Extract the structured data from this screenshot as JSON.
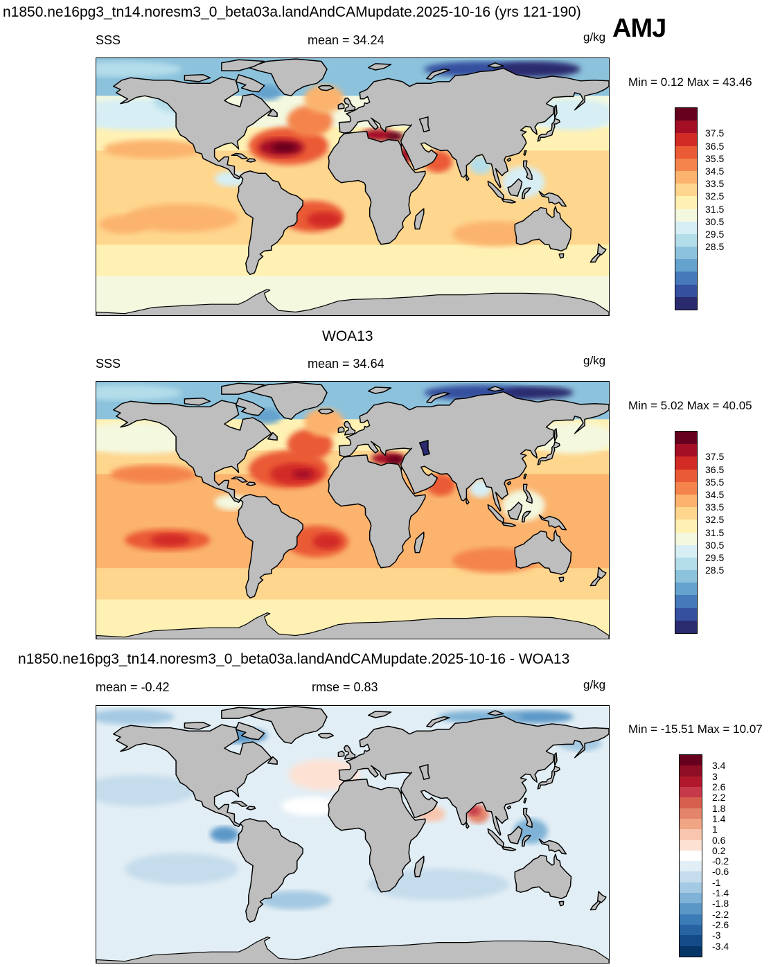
{
  "header": {
    "title": "n1850.ne16pg3_tn14.noresm3_0_beta03a.landAndCAMupdate.2025-10-16 (yrs 121-190)",
    "season": "AMJ"
  },
  "panels": [
    {
      "left_label": "SSS",
      "center_label": "mean =  34.24",
      "units": "g/kg",
      "minmax": "Min =   0.12 Max =  43.46"
    },
    {
      "title": "WOA13",
      "left_label": "SSS",
      "center_label": "mean =  34.64",
      "units": "g/kg",
      "minmax": "Min =   5.02 Max =  40.05"
    },
    {
      "title": "n1850.ne16pg3_tn14.noresm3_0_beta03a.landAndCAMupdate.2025-10-16 - WOA13",
      "left_label": "mean =  -0.42",
      "center_label": "rmse =   0.83",
      "units": "g/kg",
      "minmax": "Min = -15.51 Max =  10.07"
    }
  ],
  "colorbar_abs": {
    "labels": [
      "37.5",
      "36.5",
      "35.5",
      "34.5",
      "33.5",
      "32.5",
      "31.5",
      "30.5",
      "29.5",
      "28.5"
    ],
    "colors": [
      "#67001f",
      "#a50f26",
      "#d22b26",
      "#ea5a35",
      "#f4844c",
      "#fbb36d",
      "#fed68e",
      "#fff1b3",
      "#f3f8df",
      "#d6eef4",
      "#b4ddea",
      "#8cc2dc",
      "#65a2cd",
      "#4679b9",
      "#34509f",
      "#2a2b6e"
    ]
  },
  "colorbar_diff": {
    "labels": [
      "3.4",
      "3",
      "2.6",
      "2.2",
      "1.8",
      "1.4",
      "1",
      "0.6",
      "0.2",
      "-0.2",
      "-0.6",
      "-1",
      "-1.4",
      "-1.8",
      "-2.2",
      "-2.6",
      "-3",
      "-3.4"
    ],
    "colors": [
      "#67001f",
      "#8e0e26",
      "#b2182b",
      "#c6394a",
      "#d6604d",
      "#e4846b",
      "#f0a585",
      "#f8c6ae",
      "#fde2d4",
      "#ffffff",
      "#e2eef5",
      "#c5dcec",
      "#a4c9e2",
      "#7fb2d6",
      "#5a97c7",
      "#3c7cb6",
      "#2763a3",
      "#134a87",
      "#063568"
    ]
  },
  "chart_data": [
    {
      "type": "heatmap",
      "title": "n1850.ne16pg3_tn14.noresm3_0_beta03a.landAndCAMupdate.2025-10-16 (yrs 121-190)",
      "variable": "SSS",
      "units": "g/kg",
      "season": "AMJ",
      "mean": 34.24,
      "min": 0.12,
      "max": 43.46,
      "colorbar_ticks": [
        37.5,
        36.5,
        35.5,
        34.5,
        33.5,
        32.5,
        31.5,
        30.5,
        29.5,
        28.5
      ]
    },
    {
      "type": "heatmap",
      "title": "WOA13",
      "variable": "SSS",
      "units": "g/kg",
      "mean": 34.64,
      "min": 5.02,
      "max": 40.05,
      "colorbar_ticks": [
        37.5,
        36.5,
        35.5,
        34.5,
        33.5,
        32.5,
        31.5,
        30.5,
        29.5,
        28.5
      ]
    },
    {
      "type": "heatmap",
      "title": "n1850.ne16pg3_tn14.noresm3_0_beta03a.landAndCAMupdate.2025-10-16 - WOA13",
      "units": "g/kg",
      "mean": -0.42,
      "rmse": 0.83,
      "min": -15.51,
      "max": 10.07,
      "colorbar_ticks": [
        3.4,
        3,
        2.6,
        2.2,
        1.8,
        1.4,
        1,
        0.6,
        0.2,
        -0.2,
        -0.6,
        -1,
        -1.4,
        -1.8,
        -2.2,
        -2.6,
        -3,
        -3.4
      ]
    }
  ]
}
